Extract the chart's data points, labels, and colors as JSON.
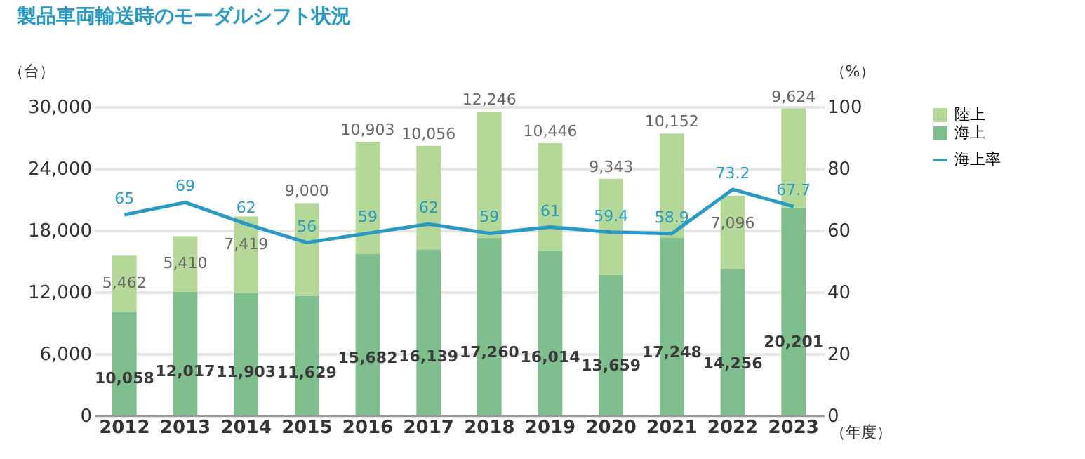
{
  "chart_data": {
    "type": "bar",
    "title": "製品車両輸送時のモーダルシフト状況",
    "ylabel": "（台）",
    "y2label": "（%）",
    "xlabel": "（年度）",
    "categories": [
      "2012",
      "2013",
      "2014",
      "2015",
      "2016",
      "2017",
      "2018",
      "2019",
      "2020",
      "2021",
      "2022",
      "2023"
    ],
    "stacked": true,
    "data_labels": true,
    "grid": "y",
    "legend": "right",
    "ylim": [
      0,
      30000
    ],
    "yticks": [
      0,
      {
        "value": 6000,
        "label": "6,000"
      },
      {
        "value": 12000,
        "label": "12,000"
      },
      {
        "value": 18000,
        "label": "18,000"
      },
      {
        "value": 24000,
        "label": "24,000"
      },
      {
        "value": 30000,
        "label": "30,000"
      }
    ],
    "y2lim": [
      0,
      100
    ],
    "y2ticks": [
      0,
      20,
      40,
      60,
      80,
      100
    ],
    "series": [
      {
        "name": "海上",
        "color": "#7fbf8e",
        "values": [
          10058,
          12017,
          11903,
          11629,
          15682,
          16139,
          17260,
          16014,
          13659,
          17248,
          14256,
          20201
        ],
        "value_labels": [
          "10,058",
          "12,017",
          "11,903",
          "11,629",
          "15,682",
          "16,139",
          "17,260",
          "16,014",
          "13,659",
          "17,248",
          "14,256",
          "20,201"
        ]
      },
      {
        "name": "陸上",
        "color": "#b3d898",
        "values": [
          5462,
          5410,
          7419,
          9000,
          10903,
          10056,
          12246,
          10446,
          9343,
          10152,
          7096,
          9624
        ],
        "value_labels": [
          "5,462",
          "5,410",
          "7,419",
          "9,000",
          "10,903",
          "10,056",
          "12,246",
          "10,446",
          "9,343",
          "10,152",
          "7,096",
          "9,624"
        ]
      },
      {
        "name": "海上率",
        "type": "line",
        "axis": "y2",
        "color": "#2a9ac4",
        "values": [
          65,
          69,
          62,
          56,
          59,
          62,
          59,
          61,
          59.4,
          58.9,
          73.2,
          67.7
        ]
      }
    ]
  }
}
